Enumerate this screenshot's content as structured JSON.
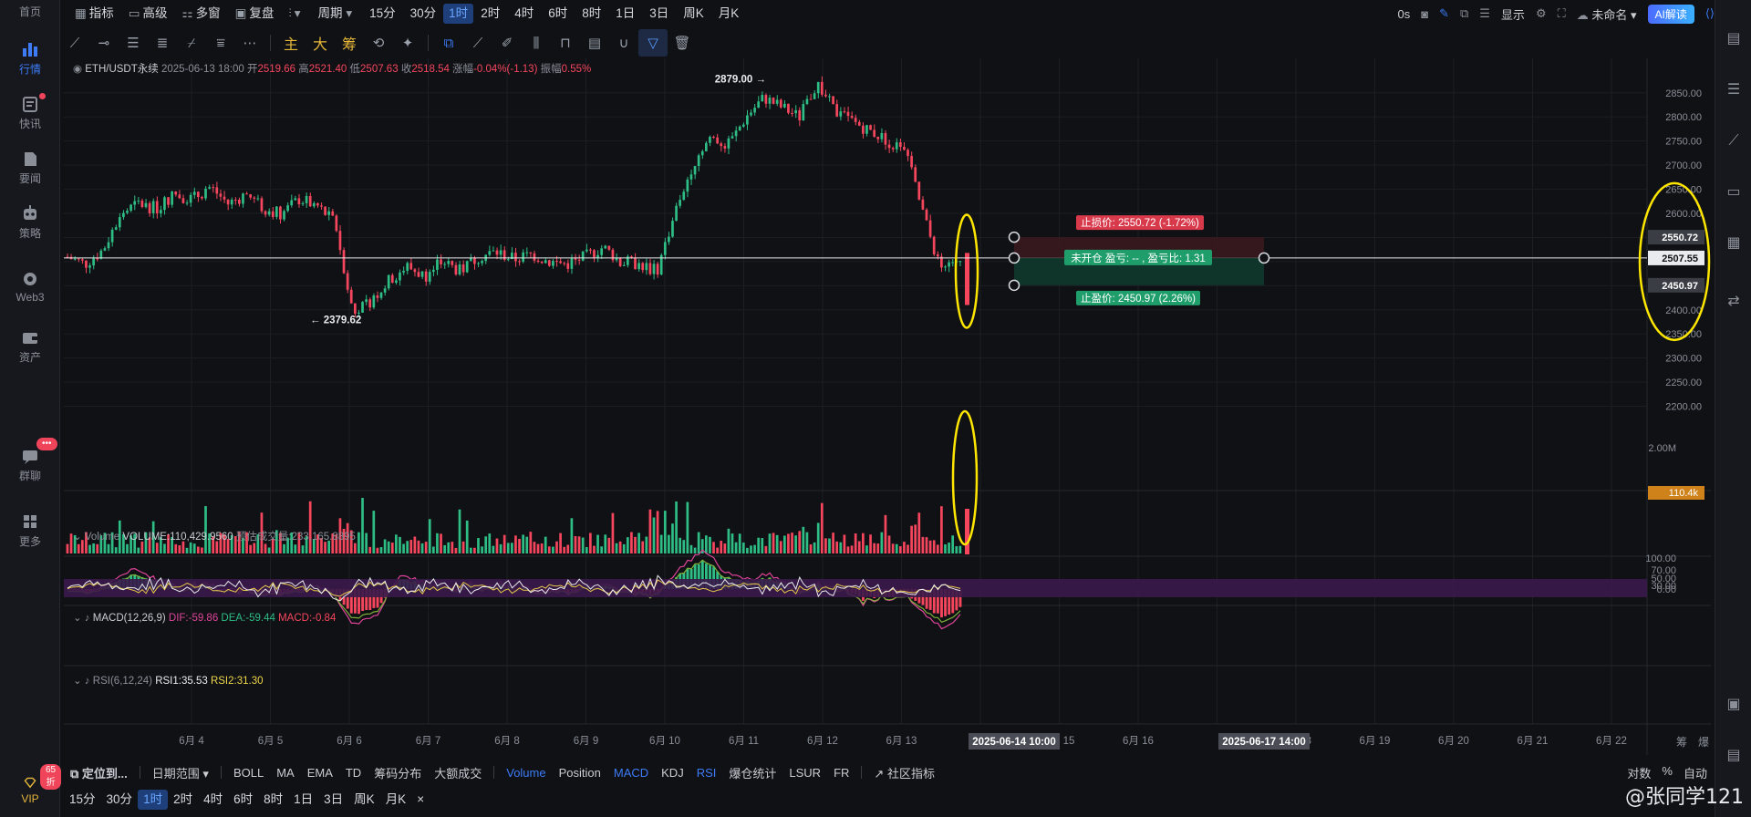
{
  "leftnav": {
    "items": [
      {
        "label": "首页",
        "icon": "home-icon"
      },
      {
        "label": "行情",
        "icon": "market-icon",
        "active": true
      },
      {
        "label": "快讯",
        "icon": "news-icon"
      },
      {
        "label": "要闻",
        "icon": "headline-icon"
      },
      {
        "label": "策略",
        "icon": "strategy-icon"
      },
      {
        "label": "Web3",
        "icon": "web3-icon"
      },
      {
        "label": "资产",
        "icon": "wallet-icon"
      },
      {
        "label": "群聊",
        "icon": "chat-icon"
      },
      {
        "label": "更多",
        "icon": "more-grid-icon"
      }
    ],
    "chat_badge": "•••",
    "vip_label": "VIP",
    "vip_badge": "65折"
  },
  "topbar": {
    "indicator": "指标",
    "advanced": "高级",
    "multi": "多窗",
    "replay": "复盘",
    "period": "周期",
    "intervals": [
      "15分",
      "30分",
      "1时",
      "2时",
      "4时",
      "6时",
      "8时",
      "1日",
      "3日",
      "周K",
      "月K"
    ],
    "active_interval": "1时",
    "right": {
      "countdown": "0s",
      "display": "显示",
      "unnamed": "未命名",
      "ai": "AI解读"
    }
  },
  "drawbar": {
    "gold_labels": [
      "主",
      "大",
      "筹"
    ]
  },
  "legend": {
    "symbol": "ETH/USDT永续",
    "datetime": "2025-06-13 18:00",
    "open_label": "开",
    "open": "2519.66",
    "high_label": "高",
    "high": "2521.40",
    "low_label": "低",
    "low": "2507.63",
    "close_label": "收",
    "close": "2518.54",
    "chg_label": "涨幅",
    "chg": "-0.04%(-1.13)",
    "amp_label": "振幅",
    "amp": "0.55%"
  },
  "chart_data": {
    "type": "candlestick",
    "interval": "1h",
    "price_axis": {
      "ticks": [
        "2850.00",
        "2800.00",
        "2750.00",
        "2700.00",
        "2650.00",
        "2600.00",
        "2550.00",
        "2500.00",
        "2450.00",
        "2400.00",
        "2350.00",
        "2300.00",
        "2250.00",
        "2200.00"
      ],
      "ylim": [
        2150,
        2895
      ]
    },
    "x_ticks": [
      "6月 4",
      "6月 5",
      "6月 6",
      "6月 7",
      "6月 8",
      "6月 9",
      "6月 10",
      "6月 11",
      "6月 12",
      "6月 13",
      "6月 14",
      "6月 15",
      "6月 16",
      "6月 17",
      "6月 18",
      "6月 19",
      "6月 20",
      "6月 21",
      "6月 22"
    ],
    "close_path": [
      2510,
      2495,
      2525,
      2600,
      2620,
      2610,
      2640,
      2630,
      2655,
      2620,
      2640,
      2610,
      2600,
      2630,
      2615,
      2580,
      2390,
      2420,
      2460,
      2490,
      2470,
      2500,
      2480,
      2510,
      2520,
      2505,
      2515,
      2500,
      2495,
      2510,
      2530,
      2500,
      2495,
      2480,
      2600,
      2700,
      2760,
      2740,
      2800,
      2840,
      2820,
      2800,
      2870,
      2810,
      2790,
      2770,
      2750,
      2720,
      2590,
      2470,
      2510
    ],
    "max_label": "2879.00",
    "min_label": "2379.62",
    "current_price": "2507.55",
    "stop_loss_price": "2550.72",
    "take_profit_price": "2450.97",
    "position_tool": {
      "stop_loss": "止损价: 2550.72 (-1.72%)",
      "status": "未开仓  盈亏: -- , 盈亏比: 1.31",
      "take_profit": "止盈价: 2450.97 (2.26%)"
    },
    "volume": {
      "title": "Volume",
      "value_label": "VOLUME:110,429.9560",
      "est_label": "预估成交量:233,165.8895",
      "axis_tick": "2.00M",
      "current_tag": "110.4k"
    },
    "macd": {
      "title": "MACD(12,26,9)",
      "dif": "DIF:-59.86",
      "dea": "DEA:-59.44",
      "macd": "MACD:-0.84",
      "axis_tick": "0.00"
    },
    "rsi": {
      "title": "RSI(6,12,24)",
      "rsi1": "RSI1:35.53",
      "rsi2": "RSI2:31.30",
      "axis_ticks": [
        "100.00",
        "70.00",
        "50.00",
        "30.00"
      ]
    },
    "crosshair_labels": [
      "2025-06-14 10:00",
      "2025-06-17 14:00"
    ],
    "corner_labels": [
      "筹",
      "爆"
    ]
  },
  "bottombar": {
    "locate": "定位到...",
    "date_range": "日期范围",
    "main_indicators": [
      "BOLL",
      "MA",
      "EMA",
      "TD",
      "筹码分布",
      "大额成交"
    ],
    "sub_indicators": [
      "Volume",
      "Position",
      "MACD",
      "KDJ",
      "RSI",
      "爆仓统计",
      "LSUR",
      "FR"
    ],
    "active_sub": [
      "Volume",
      "MACD",
      "RSI"
    ],
    "community": "社区指标",
    "scale_opts": [
      "对数",
      "%",
      "自动"
    ],
    "intervals": [
      "15分",
      "30分",
      "1时",
      "2时",
      "4时",
      "6时",
      "8时",
      "1日",
      "3日",
      "周K",
      "月K"
    ],
    "active_interval": "1时",
    "close": "×"
  },
  "watermark": "@张同学121",
  "colors": {
    "up": "#2ebd85",
    "down": "#f6465d",
    "accent": "#3d7bf7",
    "highlight": "#ffe600"
  }
}
